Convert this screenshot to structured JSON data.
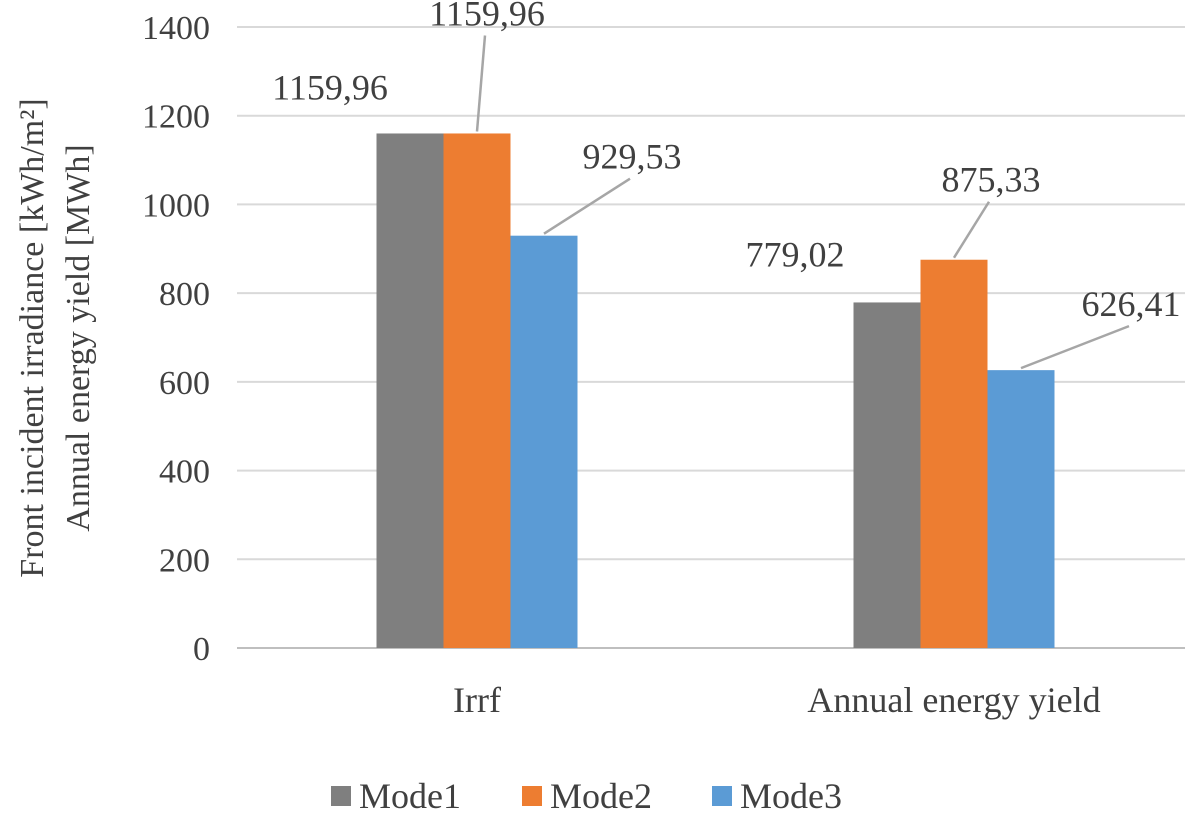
{
  "chart_data": {
    "type": "bar",
    "categories": [
      "Irrf",
      "Annual energy yield"
    ],
    "series": [
      {
        "name": "Mode1",
        "color": "#7f7f7f",
        "values": [
          1159.96,
          779.02
        ]
      },
      {
        "name": "Mode2",
        "color": "#ed7d31",
        "values": [
          1159.96,
          875.33
        ]
      },
      {
        "name": "Mode3",
        "color": "#5b9bd5",
        "values": [
          929.53,
          626.41
        ]
      }
    ],
    "data_labels": [
      [
        "1159,96",
        "779,02"
      ],
      [
        "1159,96",
        "875,33"
      ],
      [
        "929,53",
        "626,41"
      ]
    ],
    "ylabel_lines": [
      "Front incident irradiance [kWh/m²]",
      "Annual energy yield [MWh]"
    ],
    "yticks": [
      "0",
      "200",
      "400",
      "600",
      "800",
      "1000",
      "1200",
      "1400"
    ],
    "ylim": [
      0,
      1400
    ],
    "grid": true,
    "legend_position": "bottom"
  }
}
